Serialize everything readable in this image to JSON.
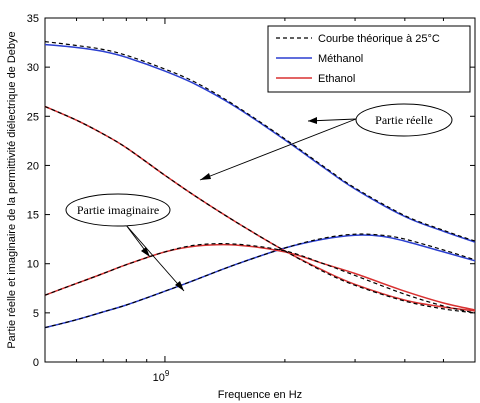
{
  "chart_data": {
    "type": "line",
    "xlabel": "Frequence en Hz",
    "ylabel": "Partie réelle et imaginaire de la permittivité diélectrique de Debye",
    "x_scale": "log",
    "xlim": [
      500000000,
      6000000000
    ],
    "ylim": [
      0,
      35
    ],
    "xticks": [
      {
        "value": 1000000000,
        "base": "10",
        "exp": "9"
      }
    ],
    "yticks": [
      0,
      5,
      10,
      15,
      20,
      25,
      30,
      35
    ],
    "grid": false,
    "legend_position": "top-right",
    "legend": [
      {
        "label": "Courbe théorique à 25°C",
        "color": "#000000",
        "dash": "4,3"
      },
      {
        "label": "Méthanol",
        "color": "#2b3fd0",
        "dash": ""
      },
      {
        "label": "Ethanol",
        "color": "#d83030",
        "dash": ""
      }
    ],
    "annotations": [
      {
        "label": "Partie réelle"
      },
      {
        "label": "Partie imaginaire"
      }
    ],
    "series": [
      {
        "name": "Méthanol",
        "part": "real",
        "color": "#2b3fd0",
        "dash": "",
        "x": [
          500000000,
          600000000,
          700000000,
          800000000,
          1000000000,
          1200000000,
          1500000000,
          2000000000,
          2500000000,
          3000000000,
          4000000000,
          5000000000,
          6000000000
        ],
        "y": [
          32.3,
          32.0,
          31.6,
          31.0,
          29.6,
          28.2,
          26.0,
          22.6,
          19.8,
          17.6,
          14.8,
          13.3,
          12.2
        ]
      },
      {
        "name": "Méthanol",
        "part": "imag",
        "color": "#2b3fd0",
        "dash": "",
        "x": [
          500000000,
          600000000,
          700000000,
          800000000,
          1000000000,
          1200000000,
          1500000000,
          2000000000,
          2500000000,
          3000000000,
          3500000000,
          4000000000,
          5000000000,
          6000000000
        ],
        "y": [
          3.5,
          4.3,
          5.1,
          5.8,
          7.2,
          8.4,
          9.9,
          11.6,
          12.5,
          12.9,
          12.8,
          12.3,
          11.2,
          10.3
        ]
      },
      {
        "name": "Courbe théorique à 25°C",
        "part": "real-methanol",
        "color": "#000000",
        "dash": "4,3",
        "x": [
          500000000,
          600000000,
          700000000,
          800000000,
          1000000000,
          1200000000,
          1500000000,
          2000000000,
          2500000000,
          3000000000,
          4000000000,
          5000000000,
          6000000000
        ],
        "y": [
          32.6,
          32.2,
          31.8,
          31.2,
          29.8,
          28.4,
          26.1,
          22.7,
          19.9,
          17.7,
          14.9,
          13.4,
          12.3
        ]
      },
      {
        "name": "Courbe théorique à 25°C",
        "part": "imag-methanol",
        "color": "#000000",
        "dash": "4,3",
        "x": [
          500000000,
          600000000,
          700000000,
          800000000,
          1000000000,
          1200000000,
          1500000000,
          2000000000,
          2500000000,
          3000000000,
          3500000000,
          4000000000,
          5000000000,
          6000000000
        ],
        "y": [
          3.5,
          4.3,
          5.1,
          5.8,
          7.2,
          8.4,
          9.9,
          11.6,
          12.6,
          13.0,
          12.9,
          12.5,
          11.4,
          10.4
        ]
      },
      {
        "name": "Ethanol",
        "part": "real",
        "color": "#d83030",
        "dash": "",
        "x": [
          500000000,
          600000000,
          700000000,
          800000000,
          1000000000,
          1200000000,
          1500000000,
          2000000000,
          2500000000,
          3000000000,
          4000000000,
          5000000000,
          6000000000
        ],
        "y": [
          26.0,
          24.6,
          23.2,
          21.8,
          19.0,
          16.8,
          14.3,
          11.3,
          9.3,
          7.9,
          6.3,
          5.6,
          5.2
        ]
      },
      {
        "name": "Ethanol",
        "part": "imag",
        "color": "#d83030",
        "dash": "",
        "x": [
          500000000,
          600000000,
          700000000,
          800000000,
          1000000000,
          1200000000,
          1500000000,
          2000000000,
          2500000000,
          3000000000,
          4000000000,
          5000000000,
          6000000000
        ],
        "y": [
          6.8,
          8.0,
          9.0,
          9.9,
          11.2,
          11.8,
          11.9,
          11.2,
          10.0,
          9.0,
          7.2,
          6.0,
          5.3
        ]
      },
      {
        "name": "Courbe théorique à 25°C",
        "part": "real-ethanol",
        "color": "#000000",
        "dash": "4,3",
        "x": [
          500000000,
          600000000,
          700000000,
          800000000,
          1000000000,
          1200000000,
          1500000000,
          2000000000,
          2500000000,
          3000000000,
          4000000000,
          5000000000,
          6000000000
        ],
        "y": [
          26.0,
          24.6,
          23.2,
          21.8,
          19.0,
          16.8,
          14.3,
          11.3,
          9.2,
          7.8,
          6.2,
          5.4,
          5.0
        ]
      },
      {
        "name": "Courbe théorique à 25°C",
        "part": "imag-ethanol",
        "color": "#000000",
        "dash": "4,3",
        "x": [
          500000000,
          600000000,
          700000000,
          800000000,
          1000000000,
          1200000000,
          1500000000,
          2000000000,
          2500000000,
          3000000000,
          4000000000,
          5000000000,
          6000000000
        ],
        "y": [
          6.8,
          8.0,
          9.0,
          9.9,
          11.2,
          11.9,
          12.0,
          11.3,
          10.0,
          8.8,
          6.9,
          5.7,
          5.0
        ]
      }
    ]
  }
}
